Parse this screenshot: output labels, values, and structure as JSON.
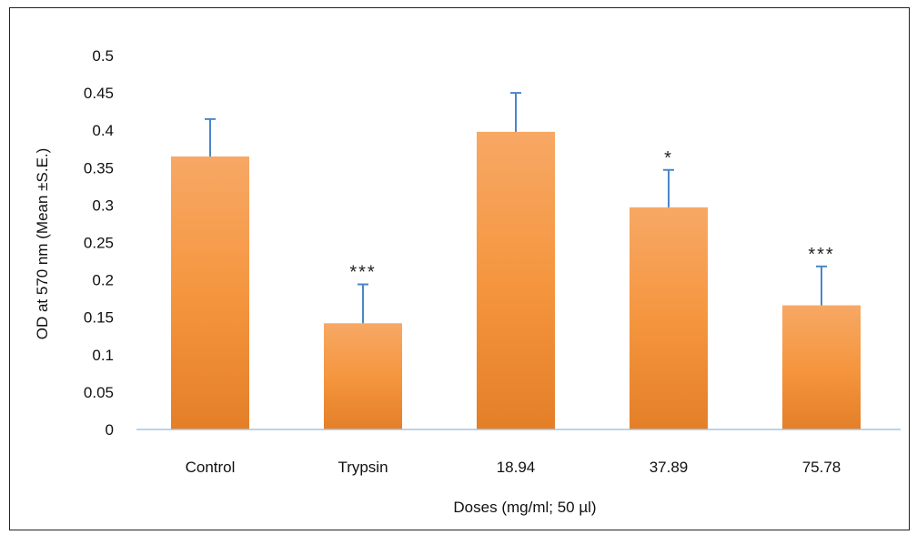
{
  "chart_data": {
    "type": "bar",
    "title": "",
    "xlabel": "Doses (mg/ml; 50 µl)",
    "ylabel": "OD at 570 nm (Mean ±S.E.)",
    "ylim": [
      0,
      0.5
    ],
    "yticks": [
      "0",
      "0.05",
      "0.1",
      "0.15",
      "0.2",
      "0.25",
      "0.3",
      "0.35",
      "0.4",
      "0.45",
      "0.5"
    ],
    "categories": [
      "Control",
      "Trypsin",
      "18.94",
      "37.89",
      "75.78"
    ],
    "values": [
      0.365,
      0.142,
      0.398,
      0.297,
      0.166
    ],
    "errors": [
      0.05,
      0.052,
      0.052,
      0.05,
      0.052
    ],
    "significance": [
      "",
      "***",
      "",
      "*",
      "***"
    ],
    "grid": false,
    "legend": "none",
    "colors": {
      "bar_top": "#f7a865",
      "bar_mid": "#f5963f",
      "bar_bottom": "#e47f28",
      "error_bar": "#4a86c8",
      "axis": "#a9c4e4"
    }
  }
}
